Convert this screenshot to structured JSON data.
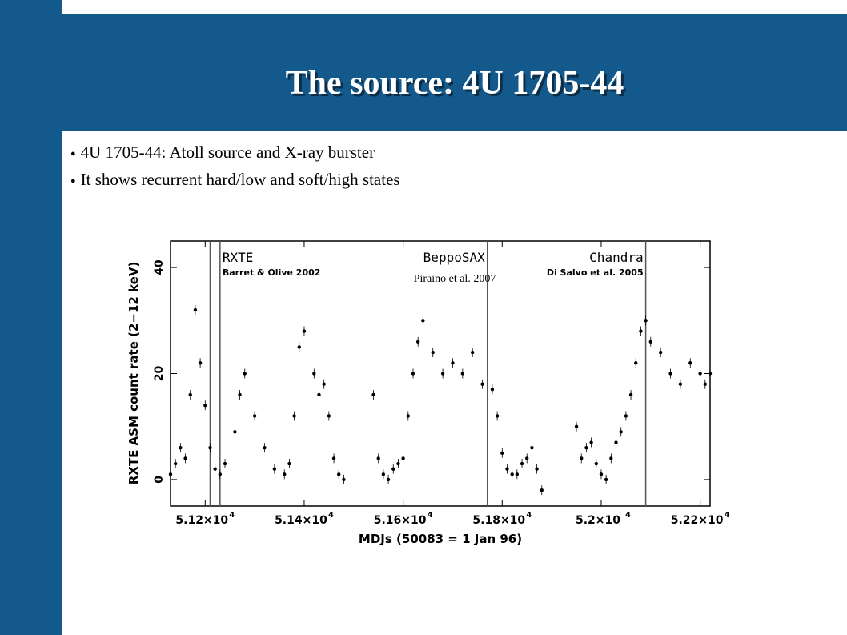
{
  "slide": {
    "title": "The source: 4U 1705-44",
    "bullets": [
      "4U 1705-44: Atoll source and X-ray burster",
      "It shows recurrent hard/low and soft/high states"
    ]
  },
  "colors": {
    "background": "#14598c",
    "title_text": "#ffffff",
    "title_shadow": "#0b2d48"
  },
  "chart_data": {
    "type": "scatter",
    "xlabel": "MDJs (50083 = 1 Jan 96)",
    "ylabel": "RXTE ASM count rate (2−12 keV)",
    "xlim": [
      51130,
      52220
    ],
    "ylim": [
      -5,
      45
    ],
    "x_ticks": [
      {
        "value": 51200,
        "label": "5.12×10",
        "exp": "4"
      },
      {
        "value": 51400,
        "label": "5.14×10",
        "exp": "4"
      },
      {
        "value": 51600,
        "label": "5.16×10",
        "exp": "4"
      },
      {
        "value": 51800,
        "label": "5.18×10",
        "exp": "4"
      },
      {
        "value": 52000,
        "label": "5.2×10",
        "exp": "4"
      },
      {
        "value": 52200,
        "label": "5.22×10",
        "exp": "4"
      }
    ],
    "y_ticks": [
      {
        "value": 0,
        "label": "0"
      },
      {
        "value": 20,
        "label": "20"
      },
      {
        "value": 40,
        "label": "40"
      }
    ],
    "observations": [
      {
        "mission": "RXTE",
        "ref": "Barret & Olive 2002",
        "x": [
          51210,
          51230
        ]
      },
      {
        "mission": "BeppoSAX",
        "ref": "",
        "x": [
          51770
        ]
      },
      {
        "mission": "Chandra",
        "ref": "Di Salvo et al. 2005",
        "x": [
          52090
        ]
      }
    ],
    "annotation": "Piraino et al. 2007",
    "segments": [
      {
        "x": [
          51130,
          51140,
          51150,
          51160,
          51170,
          51180,
          51190,
          51200,
          51210,
          51220,
          51230,
          51240,
          51260,
          51270,
          51280,
          51300,
          51320,
          51340,
          51360,
          51370,
          51380,
          51390,
          51400,
          51420,
          51430,
          51440
        ],
        "y": [
          1,
          3,
          6,
          4,
          16,
          32,
          22,
          14,
          6,
          2,
          1,
          3,
          9,
          16,
          20,
          12,
          6,
          2,
          1,
          3,
          12,
          25,
          28,
          20,
          16,
          18
        ]
      },
      {
        "x": [
          51450,
          51460,
          51470,
          51480
        ],
        "y": [
          12,
          4,
          1,
          0
        ]
      },
      {
        "x": [
          51540,
          51550,
          51560,
          51570,
          51580,
          51590,
          51600,
          51610,
          51620,
          51630,
          51640,
          51660,
          51680,
          51700,
          51720,
          51740,
          51760,
          51780,
          51790,
          51800,
          51810,
          51820
        ],
        "y": [
          16,
          4,
          1,
          0,
          2,
          3,
          4,
          12,
          20,
          26,
          30,
          24,
          20,
          22,
          20,
          24,
          18,
          17,
          12,
          5,
          2,
          1
        ]
      },
      {
        "x": [
          51830,
          51840,
          51850,
          51860,
          51870,
          51880
        ],
        "y": [
          1,
          3,
          4,
          6,
          2,
          -2
        ]
      },
      {
        "x": [
          51950,
          51960,
          51970,
          51980,
          51990,
          52000,
          52010,
          52020,
          52030,
          52040,
          52050,
          52060,
          52070,
          52080,
          52090,
          52100,
          52120,
          52140,
          52160,
          52180,
          52200,
          52210,
          52220
        ],
        "y": [
          10,
          4,
          6,
          7,
          3,
          1,
          0,
          4,
          7,
          9,
          12,
          16,
          22,
          28,
          30,
          26,
          24,
          20,
          18,
          22,
          20,
          18,
          20
        ]
      }
    ]
  }
}
